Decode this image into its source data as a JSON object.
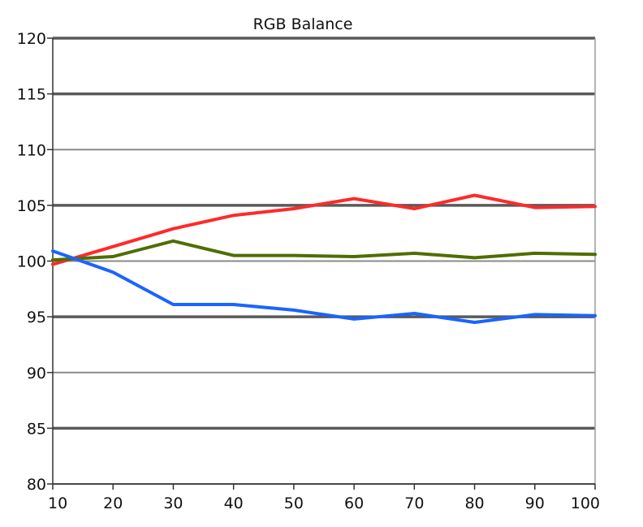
{
  "chart_data": {
    "type": "line",
    "title": "RGB Balance",
    "xlabel": "",
    "ylabel": "",
    "xlim": [
      10,
      100
    ],
    "ylim": [
      80,
      120
    ],
    "x_ticks": [
      "10",
      "20",
      "30",
      "40",
      "50",
      "60",
      "70",
      "80",
      "90",
      "100"
    ],
    "y_ticks": [
      "80",
      "85",
      "90",
      "95",
      "100",
      "105",
      "110",
      "115",
      "120"
    ],
    "grid": true,
    "x": [
      10,
      20,
      30,
      40,
      50,
      60,
      70,
      80,
      90,
      100
    ],
    "series": [
      {
        "color": "#ff2a2a",
        "values": [
          99.7,
          101.3,
          102.9,
          104.1,
          104.7,
          105.6,
          104.7,
          105.9,
          104.8,
          104.9
        ]
      },
      {
        "color": "#4f6e00",
        "values": [
          100.1,
          100.4,
          101.8,
          100.5,
          100.5,
          100.4,
          100.7,
          100.3,
          100.7,
          100.6
        ]
      },
      {
        "color": "#1a64ff",
        "values": [
          100.9,
          99.0,
          96.1,
          96.1,
          95.6,
          94.8,
          95.3,
          94.5,
          95.2,
          95.1
        ]
      }
    ]
  }
}
